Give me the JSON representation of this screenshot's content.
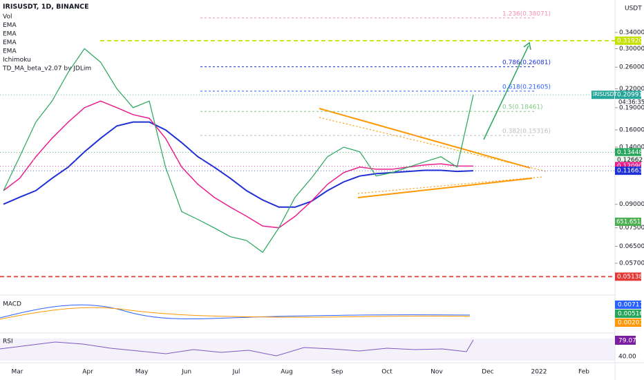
{
  "header": {
    "symbol": "IRISUSDT, 1D, BINANCE",
    "indicators": [
      "Vol",
      "EMA",
      "EMA",
      "EMA",
      "EMA",
      "Ichimoku",
      "TD_MA_beta_v2.07 by JDLim"
    ],
    "currency": "USDT"
  },
  "price_axis": {
    "log": true,
    "ticks": [
      {
        "value": 0.34,
        "label": "0.34000"
      },
      {
        "value": 0.3,
        "label": "0.30000"
      },
      {
        "value": 0.26,
        "label": "0.26000"
      },
      {
        "value": 0.22,
        "label": "0.22000"
      },
      {
        "value": 0.19,
        "label": "0.19000"
      },
      {
        "value": 0.16,
        "label": "0.16000"
      },
      {
        "value": 0.14,
        "label": "0.14000"
      },
      {
        "value": 0.09,
        "label": "0.09000"
      },
      {
        "value": 0.075,
        "label": "0.07500"
      },
      {
        "value": 0.065,
        "label": "0.06500"
      },
      {
        "value": 0.057,
        "label": "0.05700"
      }
    ]
  },
  "fib_levels": [
    {
      "label": "1.236(0.38071)",
      "value": 0.38071
    },
    {
      "label": "0.786(0.26081)",
      "value": 0.26081
    },
    {
      "label": "0.618(0.21605)",
      "value": 0.21605
    },
    {
      "label": "0.5(0.18461)",
      "value": 0.18461
    },
    {
      "label": "0.382(0.15316)",
      "value": 0.15316
    }
  ],
  "badges": [
    {
      "label": "0.31920",
      "value": 0.3192,
      "color": "#c6e000"
    },
    {
      "label": "0.20991",
      "value": 0.20991,
      "color": "#26a69a",
      "symbol": "IRISUSDT",
      "countdown": "04:36:35"
    },
    {
      "label": "0.13448",
      "value": 0.13448,
      "color": "#26a65a"
    },
    {
      "label": "0.12662",
      "value": 0.12662,
      "color": "#e8f5e9"
    },
    {
      "label": "0.12090",
      "value": 0.1209,
      "color": "#e91e8c"
    },
    {
      "label": "0.11663",
      "value": 0.11663,
      "color": "#1e2fd6"
    },
    {
      "label": "0.05138",
      "value": 0.05138,
      "color": "#e53935"
    }
  ],
  "volume_badge": {
    "label": "651.651M",
    "color": "#4caf50"
  },
  "price": {
    "closes": [
      0.1,
      0.13,
      0.17,
      0.2,
      0.25,
      0.3,
      0.27,
      0.22,
      0.19,
      0.2,
      0.12,
      0.085,
      0.08,
      0.075,
      0.07,
      0.068,
      0.062,
      0.075,
      0.095,
      0.11,
      0.13,
      0.14,
      0.135,
      0.112,
      0.115,
      0.12,
      0.125,
      0.13,
      0.12,
      0.20991
    ],
    "ema_pink": [
      0.1,
      0.11,
      0.13,
      0.15,
      0.17,
      0.19,
      0.2,
      0.19,
      0.18,
      0.175,
      0.15,
      0.12,
      0.105,
      0.095,
      0.088,
      0.082,
      0.076,
      0.075,
      0.082,
      0.092,
      0.105,
      0.115,
      0.12,
      0.118,
      0.118,
      0.12,
      0.122,
      0.123,
      0.121,
      0.1209
    ],
    "ema_blue": [
      0.09,
      0.095,
      0.1,
      0.11,
      0.12,
      0.135,
      0.15,
      0.165,
      0.17,
      0.17,
      0.16,
      0.145,
      0.13,
      0.12,
      0.11,
      0.1,
      0.093,
      0.088,
      0.088,
      0.092,
      0.1,
      0.107,
      0.112,
      0.114,
      0.115,
      0.116,
      0.117,
      0.117,
      0.116,
      0.11663
    ]
  },
  "macd": {
    "title": "MACD",
    "badges": [
      {
        "label": "0.00717",
        "color": "#2962ff"
      },
      {
        "label": "0.00516",
        "color": "#26a65a"
      },
      {
        "label": "0.00201",
        "color": "#ff9800"
      }
    ]
  },
  "rsi": {
    "title": "RSI",
    "value_label": "79.07",
    "level_label": "40.00"
  },
  "time_axis": [
    "Mar",
    "Apr",
    "May",
    "Jun",
    "Jul",
    "Aug",
    "Sep",
    "Oct",
    "Nov",
    "Dec",
    "2022",
    "Feb"
  ]
}
